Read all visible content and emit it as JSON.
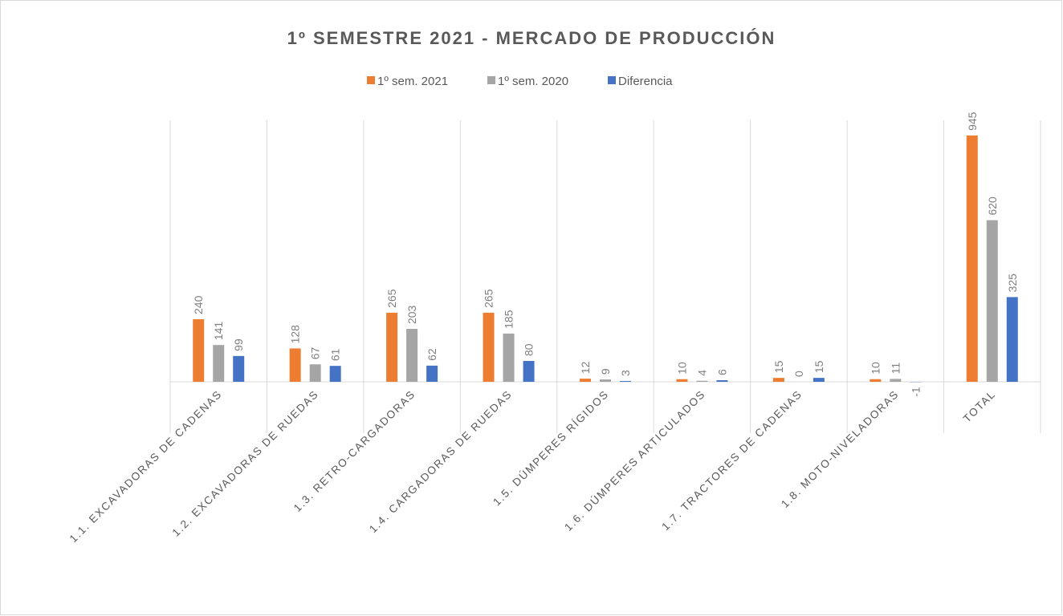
{
  "chart_data": {
    "type": "bar",
    "title": "1º SEMESTRE 2021 - MERCADO DE PRODUCCIÓN",
    "categories": [
      "1.1. EXCAVADORAS DE CADENAS",
      "1.2. EXCAVADORAS DE RUEDAS",
      "1.3. RETRO-CARGADORAS",
      "1.4. CARGADORAS DE RUEDAS",
      "1.5. DÚMPERES RÍGIDOS",
      "1.6. DÚMPERES ARTICULADOS",
      "1.7. TRACTORES DE CADENAS",
      "1.8. MOTO-NIVELADORAS",
      "TOTAL"
    ],
    "series": [
      {
        "name": "1º sem. 2021",
        "color": "#ed7d31",
        "values": [
          240,
          128,
          265,
          265,
          12,
          10,
          15,
          10,
          945
        ]
      },
      {
        "name": "1º sem. 2020",
        "color": "#a5a5a5",
        "values": [
          141,
          67,
          203,
          185,
          9,
          4,
          0,
          11,
          620
        ]
      },
      {
        "name": "Diferencia",
        "color": "#4472c4",
        "values": [
          99,
          61,
          62,
          80,
          3,
          6,
          15,
          -1,
          325
        ]
      }
    ],
    "ylim": [
      0,
      1000
    ],
    "legend": "top"
  }
}
